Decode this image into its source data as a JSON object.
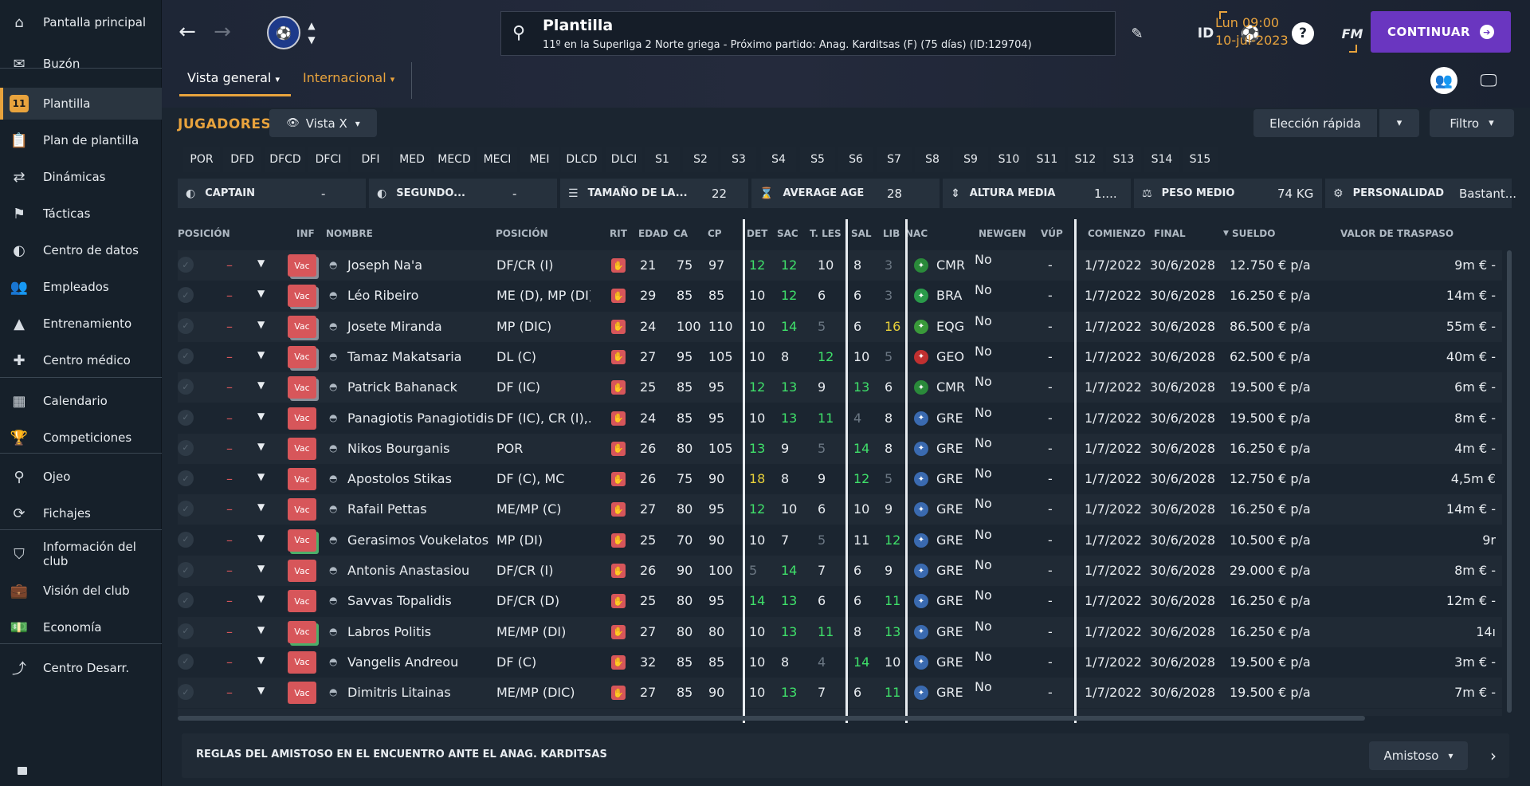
{
  "sidebar": {
    "items": [
      {
        "label": "Pantalla principal",
        "icon": "home-icon",
        "glyph": "⌂"
      },
      {
        "label": "Buzón",
        "icon": "inbox-icon",
        "glyph": "✉"
      },
      {
        "label": "Plantilla",
        "icon": "squad-shirt-icon",
        "glyph": "11"
      },
      {
        "label": "Plan de plantilla",
        "icon": "clipboard-icon",
        "glyph": "📋"
      },
      {
        "label": "Dinámicas",
        "icon": "dynamics-icon",
        "glyph": "⇄"
      },
      {
        "label": "Tácticas",
        "icon": "tactics-board-icon",
        "glyph": "⚑"
      },
      {
        "label": "Centro de datos",
        "icon": "data-hub-icon",
        "glyph": "◐"
      },
      {
        "label": "Empleados",
        "icon": "staff-icon",
        "glyph": "👥"
      },
      {
        "label": "Entrenamiento",
        "icon": "training-cone-icon",
        "glyph": "▲"
      },
      {
        "label": "Centro médico",
        "icon": "medical-kit-icon",
        "glyph": "✚"
      },
      {
        "label": "Calendario",
        "icon": "calendar-icon",
        "glyph": "▦"
      },
      {
        "label": "Competiciones",
        "icon": "trophy-icon",
        "glyph": "🏆"
      },
      {
        "label": "Ojeo",
        "icon": "scouting-magnifier-icon",
        "glyph": "⚲"
      },
      {
        "label": "Fichajes",
        "icon": "transfers-icon",
        "glyph": "⟳"
      },
      {
        "label": "Información del club",
        "icon": "club-shield-icon",
        "glyph": "⛉"
      },
      {
        "label": "Visión del club",
        "icon": "briefcase-icon",
        "glyph": "💼"
      },
      {
        "label": "Economía",
        "icon": "money-icon",
        "glyph": "💵"
      },
      {
        "label": "Centro Desarr.",
        "icon": "development-chart-icon",
        "glyph": "⤴"
      }
    ]
  },
  "header": {
    "title": "Plantilla",
    "subtitle": "11º en la Superliga 2 Norte griega - Próximo partido: Anag. Karditsas (F) (75 días) (ID:129704)",
    "day_time": "Lun 09:00",
    "date": "10-jul-2023",
    "continue_label": "CONTINUAR",
    "id_label": "ID",
    "fm_label": "FM",
    "tabs": [
      "Vista general",
      "Internacional"
    ]
  },
  "toolbar": {
    "players_label": "JUGADORES",
    "view_label": "Vista X",
    "quick_pick": "Elección rápida",
    "filter": "Filtro"
  },
  "position_filters": [
    "POR",
    "DFD",
    "DFCD",
    "DFCI",
    "DFI",
    "MED",
    "MECD",
    "MECI",
    "MEI",
    "DLCD",
    "DLCI",
    "S1",
    "S2",
    "S3",
    "S4",
    "S5",
    "S6",
    "S7",
    "S8",
    "S9",
    "S10",
    "S11",
    "S12",
    "S13",
    "S14",
    "S15"
  ],
  "summary": [
    {
      "label": "CAPTAIN",
      "value": "-"
    },
    {
      "label": "SEGUNDO...",
      "value": "-"
    },
    {
      "label": "TAMAÑO DE LA...",
      "value": "22"
    },
    {
      "label": "AVERAGE AGE",
      "value": "28"
    },
    {
      "label": "ALTURA MEDIA",
      "value": "1...."
    },
    {
      "label": "PESO MEDIO",
      "value": "74 KG"
    },
    {
      "label": "PERSONALIDAD",
      "value": "Bastant..."
    }
  ],
  "table": {
    "headers": [
      "POSICIÓN",
      "INF",
      "NOMBRE",
      "POSICIÓN",
      "RIT",
      "EDAD",
      "CA",
      "CP",
      "DET",
      "SAC",
      "T. LES",
      "SAL",
      "LIB",
      "NAC",
      "NEWGEN",
      "VÚP",
      "COMIENZO",
      "FINAL",
      "SUELDO",
      "VALOR DE TRASPASO"
    ],
    "rows": [
      {
        "name": "Joseph Na'a",
        "pos": "DF/CR (I)",
        "age": "21",
        "ca": "75",
        "cp": "97",
        "det": "12",
        "sac": "12",
        "tles": "10",
        "sal": "8",
        "lib": "3",
        "nac": "CMR",
        "newgen": "No",
        "vup": "-",
        "start": "1/7/2022",
        "end": "30/6/2028",
        "wage": "12.750 € p/a",
        "value": "9m € -"
      },
      {
        "name": "Léo Ribeiro",
        "pos": "ME (D), MP (DI)",
        "age": "29",
        "ca": "85",
        "cp": "85",
        "det": "10",
        "sac": "12",
        "tles": "6",
        "sal": "6",
        "lib": "3",
        "nac": "BRA",
        "newgen": "No",
        "vup": "-",
        "start": "1/7/2022",
        "end": "30/6/2028",
        "wage": "16.250 € p/a",
        "value": "14m € -"
      },
      {
        "name": "Josete Miranda",
        "pos": "MP (DIC)",
        "age": "24",
        "ca": "100",
        "cp": "110",
        "det": "10",
        "sac": "14",
        "tles": "5",
        "sal": "6",
        "lib": "16",
        "nac": "EQG",
        "newgen": "No",
        "vup": "-",
        "start": "1/7/2022",
        "end": "30/6/2028",
        "wage": "86.500 € p/a",
        "value": "55m € -"
      },
      {
        "name": "Tamaz Makatsaria",
        "pos": "DL (C)",
        "age": "27",
        "ca": "95",
        "cp": "105",
        "det": "10",
        "sac": "8",
        "tles": "12",
        "sal": "10",
        "lib": "5",
        "nac": "GEO",
        "newgen": "No",
        "vup": "-",
        "start": "1/7/2022",
        "end": "30/6/2028",
        "wage": "62.500 € p/a",
        "value": "40m € -"
      },
      {
        "name": "Patrick Bahanack",
        "pos": "DF (IC)",
        "age": "25",
        "ca": "85",
        "cp": "95",
        "det": "12",
        "sac": "13",
        "tles": "9",
        "sal": "13",
        "lib": "6",
        "nac": "CMR",
        "newgen": "No",
        "vup": "-",
        "start": "1/7/2022",
        "end": "30/6/2028",
        "wage": "19.500 € p/a",
        "value": "6m € -"
      },
      {
        "name": "Panagiotis Panagiotidis",
        "pos": "DF (IC), CR (I),...",
        "age": "24",
        "ca": "85",
        "cp": "95",
        "det": "10",
        "sac": "13",
        "tles": "11",
        "sal": "4",
        "lib": "8",
        "nac": "GRE",
        "newgen": "No",
        "vup": "-",
        "start": "1/7/2022",
        "end": "30/6/2028",
        "wage": "19.500 € p/a",
        "value": "8m € -"
      },
      {
        "name": "Nikos Bourganis",
        "pos": "POR",
        "age": "26",
        "ca": "80",
        "cp": "105",
        "det": "13",
        "sac": "9",
        "tles": "5",
        "sal": "14",
        "lib": "8",
        "nac": "GRE",
        "newgen": "No",
        "vup": "-",
        "start": "1/7/2022",
        "end": "30/6/2028",
        "wage": "16.250 € p/a",
        "value": "4m € -"
      },
      {
        "name": "Apostolos Stikas",
        "pos": "DF (C), MC",
        "age": "26",
        "ca": "75",
        "cp": "90",
        "det": "18",
        "sac": "8",
        "tles": "9",
        "sal": "12",
        "lib": "5",
        "nac": "GRE",
        "newgen": "No",
        "vup": "-",
        "start": "1/7/2022",
        "end": "30/6/2028",
        "wage": "12.750 € p/a",
        "value": "4,5m €"
      },
      {
        "name": "Rafail Pettas",
        "pos": "ME/MP (C)",
        "age": "27",
        "ca": "80",
        "cp": "95",
        "det": "12",
        "sac": "10",
        "tles": "6",
        "sal": "10",
        "lib": "9",
        "nac": "GRE",
        "newgen": "No",
        "vup": "-",
        "start": "1/7/2022",
        "end": "30/6/2028",
        "wage": "16.250 € p/a",
        "value": "14m € -"
      },
      {
        "name": "Gerasimos Voukelatos",
        "pos": "MP (DI)",
        "age": "25",
        "ca": "70",
        "cp": "90",
        "det": "10",
        "sac": "7",
        "tles": "5",
        "sal": "11",
        "lib": "12",
        "nac": "GRE",
        "newgen": "No",
        "vup": "-",
        "start": "1/7/2022",
        "end": "30/6/2028",
        "wage": "10.500 € p/a",
        "value": "9r"
      },
      {
        "name": "Antonis Anastasiou",
        "pos": "DF/CR (I)",
        "age": "26",
        "ca": "90",
        "cp": "100",
        "det": "5",
        "sac": "14",
        "tles": "7",
        "sal": "6",
        "lib": "9",
        "nac": "GRE",
        "newgen": "No",
        "vup": "-",
        "start": "1/7/2022",
        "end": "30/6/2028",
        "wage": "29.000 € p/a",
        "value": "8m € -"
      },
      {
        "name": "Savvas Topalidis",
        "pos": "DF/CR (D)",
        "age": "25",
        "ca": "80",
        "cp": "95",
        "det": "14",
        "sac": "13",
        "tles": "6",
        "sal": "6",
        "lib": "11",
        "nac": "GRE",
        "newgen": "No",
        "vup": "-",
        "start": "1/7/2022",
        "end": "30/6/2028",
        "wage": "16.250 € p/a",
        "value": "12m € -"
      },
      {
        "name": "Labros Politis",
        "pos": "ME/MP (DI)",
        "age": "27",
        "ca": "80",
        "cp": "80",
        "det": "10",
        "sac": "13",
        "tles": "11",
        "sal": "8",
        "lib": "13",
        "nac": "GRE",
        "newgen": "No",
        "vup": "-",
        "start": "1/7/2022",
        "end": "30/6/2028",
        "wage": "16.250 € p/a",
        "value": "14ı"
      },
      {
        "name": "Vangelis Andreou",
        "pos": "DF (C)",
        "age": "32",
        "ca": "85",
        "cp": "85",
        "det": "10",
        "sac": "8",
        "tles": "4",
        "sal": "14",
        "lib": "10",
        "nac": "GRE",
        "newgen": "No",
        "vup": "-",
        "start": "1/7/2022",
        "end": "30/6/2028",
        "wage": "19.500 € p/a",
        "value": "3m € -"
      },
      {
        "name": "Dimitris Litainas",
        "pos": "ME/MP (DIC)",
        "age": "27",
        "ca": "85",
        "cp": "90",
        "det": "10",
        "sac": "13",
        "tles": "7",
        "sal": "6",
        "lib": "11",
        "nac": "GRE",
        "newgen": "No",
        "vup": "-",
        "start": "1/7/2022",
        "end": "30/6/2028",
        "wage": "19.500 € p/a",
        "value": "7m € -"
      }
    ],
    "vac_label": "Vac",
    "dash": "–"
  },
  "footer": {
    "rules_text": "REGLAS DEL AMISTOSO EN EL ENCUENTRO ANTE EL ANAG. KARDITSAS",
    "match_type": "Amistoso"
  }
}
